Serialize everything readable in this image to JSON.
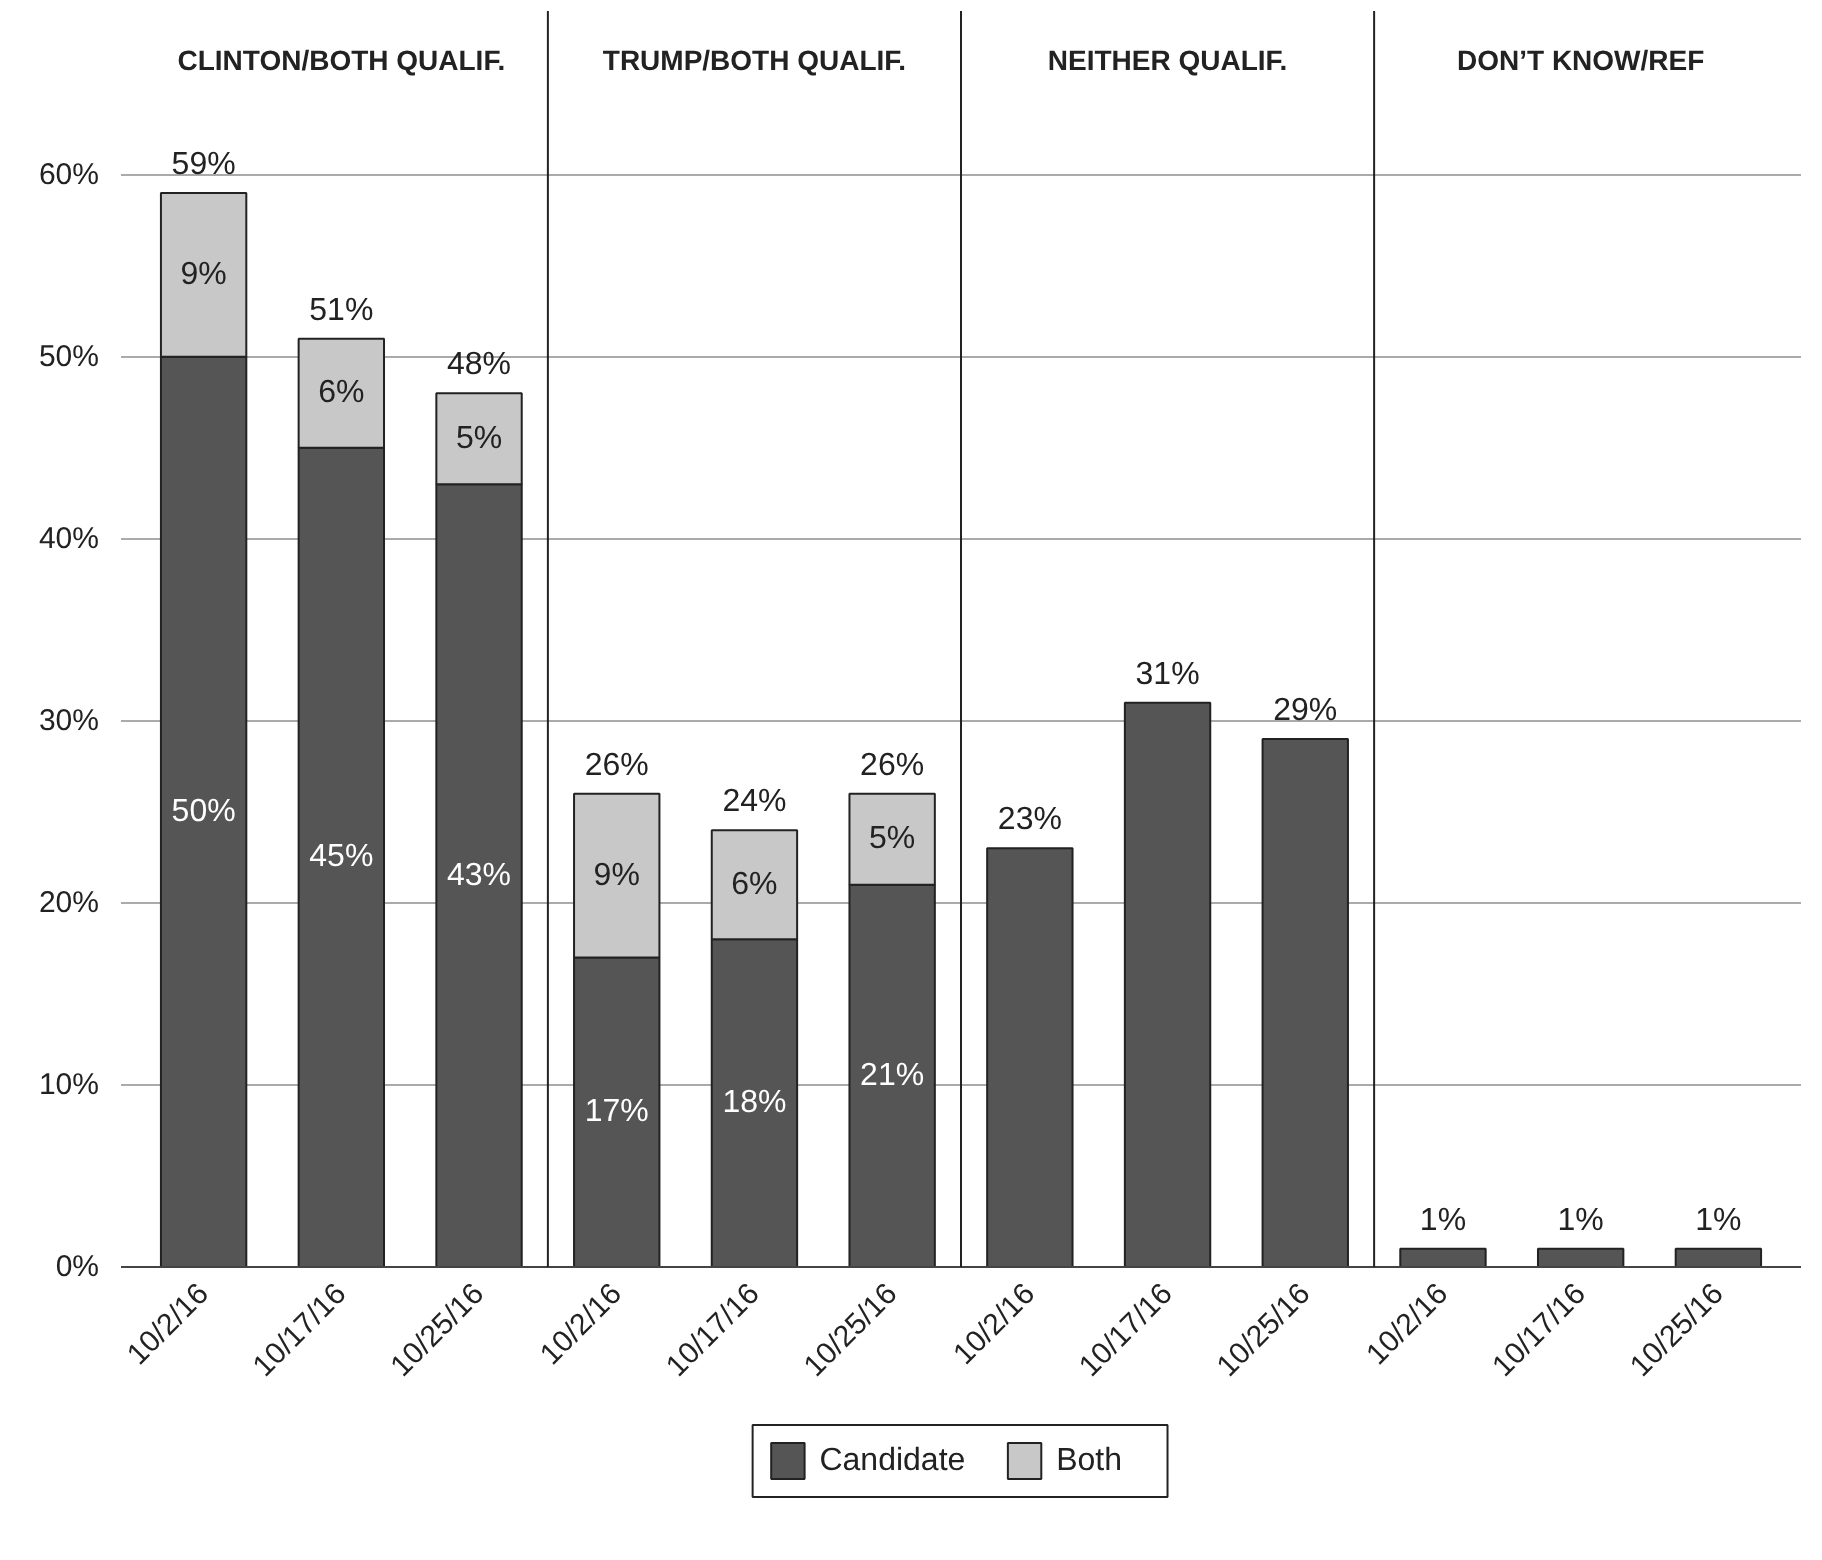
{
  "chart_data": {
    "type": "bar",
    "stacked": true,
    "categories": [
      "10/2/16",
      "10/17/16",
      "10/25/16",
      "10/2/16",
      "10/17/16",
      "10/25/16",
      "10/2/16",
      "10/17/16",
      "10/25/16",
      "10/2/16",
      "10/17/16",
      "10/25/16"
    ],
    "series": [
      {
        "name": "Candidate",
        "color": "#555555",
        "values": [
          50,
          45,
          43,
          17,
          18,
          21,
          23,
          31,
          29,
          1,
          1,
          1
        ],
        "value_labels": [
          "50%",
          "45%",
          "43%",
          "17%",
          "18%",
          "21%",
          null,
          null,
          null,
          null,
          null,
          null
        ]
      },
      {
        "name": "Both",
        "color": "#c8c8c8",
        "values": [
          9,
          6,
          5,
          9,
          6,
          5,
          null,
          null,
          null,
          null,
          null,
          null
        ],
        "value_labels": [
          "9%",
          "6%",
          "5%",
          "9%",
          "6%",
          "5%",
          null,
          null,
          null,
          null,
          null,
          null
        ]
      }
    ],
    "totals": [
      "59%",
      "51%",
      "48%",
      "26%",
      "24%",
      "26%",
      "23%",
      "31%",
      "29%",
      "1%",
      "1%",
      "1%"
    ],
    "annotations": [
      "CLINTON/BOTH QUALIF.",
      "TRUMP/BOTH QUALIF.",
      "NEITHER QUALIF.",
      "DON’T KNOW/REF"
    ],
    "ylim": [
      0,
      69
    ],
    "yticks": [
      {
        "value": 0,
        "label": "0%"
      },
      {
        "value": 10,
        "label": "10%"
      },
      {
        "value": 20,
        "label": "20%"
      },
      {
        "value": 30,
        "label": "30%"
      },
      {
        "value": 40,
        "label": "40%"
      },
      {
        "value": 50,
        "label": "50%"
      },
      {
        "value": 60,
        "label": "60%"
      }
    ],
    "grid": "y",
    "legend": "bottom"
  }
}
